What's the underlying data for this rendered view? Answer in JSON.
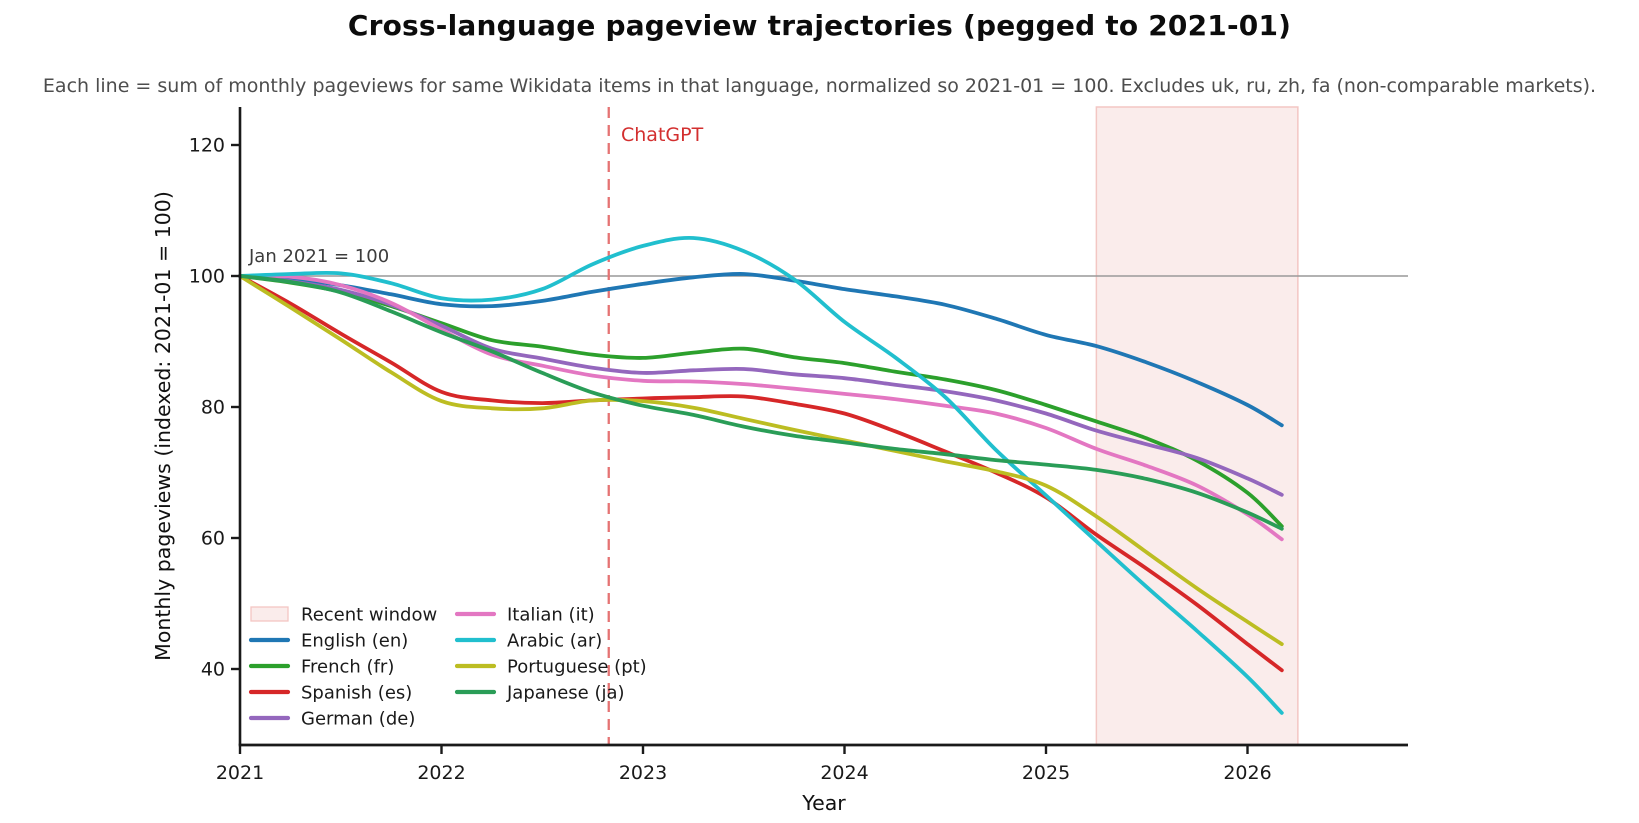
{
  "header": {
    "title": "Cross-language pageview trajectories (pegged to 2021-01)",
    "subtitle": "Each line = sum of monthly pageviews for same Wikidata items in that language, normalized so 2021-01 = 100. Excludes uk, ru, zh, fa (non-comparable markets)."
  },
  "chart_data": {
    "type": "line",
    "title": "Cross-language pageview trajectories (pegged to 2021-01)",
    "xlabel": "Year",
    "ylabel": "Monthly pageviews (indexed: 2021-01 = 100)",
    "xlim": [
      2021.0,
      2026.8
    ],
    "ylim": [
      28.4,
      125.8
    ],
    "xticks": [
      2021,
      2022,
      2023,
      2024,
      2025,
      2026
    ],
    "yticks": [
      40,
      60,
      80,
      100,
      120
    ],
    "grid": false,
    "legend_position": "lower-left",
    "reference_line": {
      "y": 100,
      "color": "#999999",
      "label": "Jan 2021 = 100"
    },
    "event_line": {
      "x": 2022.83,
      "label": "ChatGPT",
      "line_color": "#e57373",
      "label_color": "#d32f2f",
      "style": "dashed"
    },
    "recent_window": {
      "x0": 2025.25,
      "x1": 2026.25,
      "label": "Recent window",
      "fill": "#faeceb",
      "border": "#f3c6c3"
    },
    "x": [
      2021.0,
      2021.25,
      2021.5,
      2021.75,
      2022.0,
      2022.25,
      2022.5,
      2022.75,
      2023.0,
      2023.25,
      2023.5,
      2023.75,
      2024.0,
      2024.25,
      2024.5,
      2024.75,
      2025.0,
      2025.25,
      2025.5,
      2025.75,
      2026.0,
      2026.17
    ],
    "series": [
      {
        "name": "English (en)",
        "color": "#1f77b4",
        "values": [
          100,
          99.6,
          98.6,
          97.2,
          95.7,
          95.4,
          96.2,
          97.6,
          98.8,
          99.8,
          100.3,
          99.3,
          98.0,
          96.9,
          95.6,
          93.5,
          91.0,
          89.3,
          86.8,
          83.8,
          80.3,
          77.2
        ]
      },
      {
        "name": "French (fr)",
        "color": "#2ca02c",
        "values": [
          100,
          99.0,
          97.6,
          95.4,
          92.8,
          90.2,
          89.2,
          88.0,
          87.5,
          88.3,
          88.9,
          87.6,
          86.7,
          85.4,
          84.2,
          82.6,
          80.3,
          77.8,
          75.2,
          71.8,
          66.9,
          61.8
        ]
      },
      {
        "name": "Spanish (es)",
        "color": "#d62728",
        "values": [
          100,
          95.8,
          91.2,
          86.8,
          82.3,
          81.0,
          80.6,
          81.0,
          81.3,
          81.5,
          81.6,
          80.5,
          79.0,
          76.3,
          73.2,
          70.0,
          66.2,
          60.5,
          55.3,
          49.8,
          43.8,
          39.8
        ]
      },
      {
        "name": "German (de)",
        "color": "#9467bd",
        "values": [
          100,
          99.2,
          97.9,
          95.6,
          92.4,
          88.9,
          87.4,
          86.0,
          85.2,
          85.6,
          85.8,
          85.0,
          84.4,
          83.4,
          82.4,
          81.0,
          79.0,
          76.4,
          74.3,
          72.2,
          69.1,
          66.6
        ]
      },
      {
        "name": "Italian (it)",
        "color": "#e377c2",
        "values": [
          100,
          99.9,
          98.6,
          95.9,
          91.8,
          88.0,
          86.3,
          84.8,
          84.0,
          83.9,
          83.5,
          82.8,
          82.0,
          81.2,
          80.2,
          79.0,
          76.8,
          73.6,
          71.0,
          68.0,
          63.6,
          59.8
        ]
      },
      {
        "name": "Arabic (ar)",
        "color": "#21bfce",
        "values": [
          100,
          100.3,
          100.4,
          98.9,
          96.6,
          96.4,
          98.0,
          101.8,
          104.6,
          105.8,
          103.8,
          99.5,
          93.0,
          87.6,
          81.5,
          73.5,
          66.5,
          59.5,
          52.5,
          45.8,
          38.8,
          33.3
        ]
      },
      {
        "name": "Portuguese (pt)",
        "color": "#bcbd22",
        "values": [
          100,
          95.2,
          90.3,
          85.3,
          80.9,
          79.8,
          79.8,
          81.0,
          80.9,
          79.9,
          78.2,
          76.5,
          74.9,
          73.3,
          71.7,
          70.2,
          68.0,
          63.3,
          57.8,
          52.3,
          47.2,
          43.8
        ]
      },
      {
        "name": "Japanese (ja)",
        "color": "#2a9d57",
        "values": [
          100,
          99.1,
          97.5,
          94.6,
          91.4,
          88.5,
          85.2,
          82.2,
          80.2,
          78.8,
          77.0,
          75.6,
          74.6,
          73.6,
          72.8,
          71.9,
          71.2,
          70.4,
          69.0,
          66.9,
          63.9,
          61.4
        ]
      }
    ],
    "legend": {
      "columns": [
        [
          {
            "label": "Recent window",
            "type": "patch",
            "color": "#faeceb",
            "border": "#f3c6c3"
          },
          {
            "label": "English (en)",
            "type": "line",
            "color": "#1f77b4"
          },
          {
            "label": "French (fr)",
            "type": "line",
            "color": "#2ca02c"
          },
          {
            "label": "Spanish (es)",
            "type": "line",
            "color": "#d62728"
          },
          {
            "label": "German (de)",
            "type": "line",
            "color": "#9467bd"
          }
        ],
        [
          {
            "label": "Italian (it)",
            "type": "line",
            "color": "#e377c2"
          },
          {
            "label": "Arabic (ar)",
            "type": "line",
            "color": "#21bfce"
          },
          {
            "label": "Portuguese (pt)",
            "type": "line",
            "color": "#bcbd22"
          },
          {
            "label": "Japanese (ja)",
            "type": "line",
            "color": "#2a9d57"
          }
        ]
      ]
    }
  }
}
